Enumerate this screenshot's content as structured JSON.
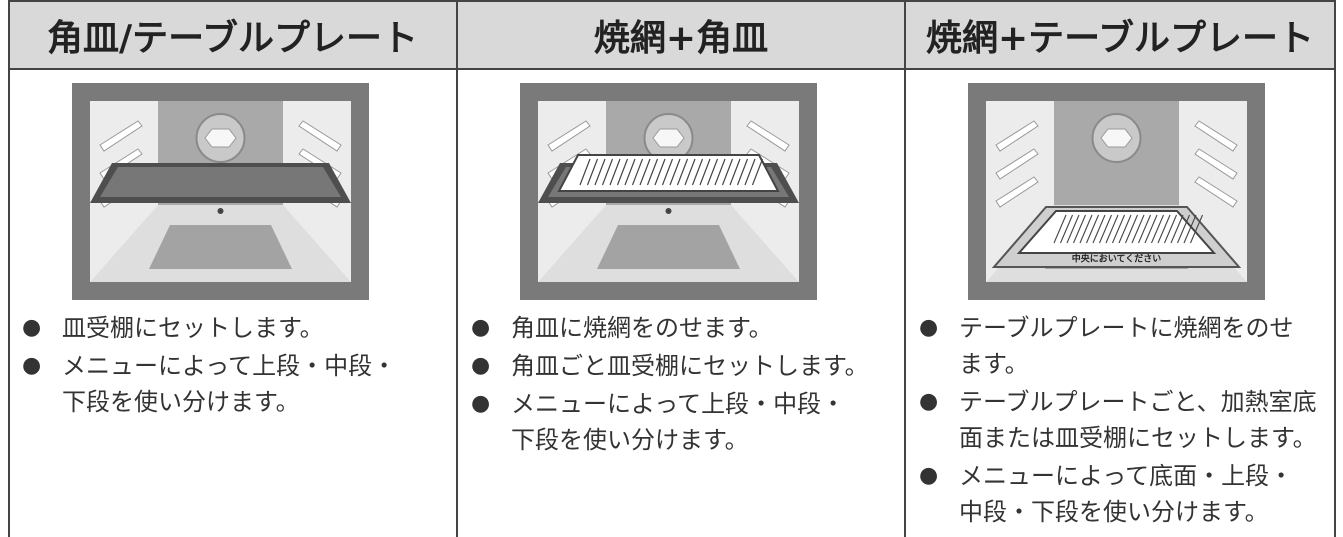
{
  "columns": [
    {
      "header": "角皿/テーブルプレート",
      "bullets": [
        [
          "皿受棚にセットします。"
        ],
        [
          "メニューによって上段・中段・",
          "下段を使い分けます。"
        ]
      ]
    },
    {
      "header": "焼網+角皿",
      "bullets": [
        [
          "角皿に焼網をのせます。"
        ],
        [
          "角皿ごと皿受棚にセットします。"
        ],
        [
          "メニューによって上段・中段・",
          "下段を使い分けます。"
        ]
      ]
    },
    {
      "header": "焼網+テーブルプレート",
      "bullets": [
        [
          "テーブルプレートに焼網をのせ",
          "ます。"
        ],
        [
          "テーブルプレートごと、加熱室底",
          "面または皿受棚にセットします。"
        ],
        [
          "メニューによって底面・上段・",
          "中段・下段を使い分けます。"
        ]
      ],
      "plate_label": "中央においてください"
    }
  ]
}
